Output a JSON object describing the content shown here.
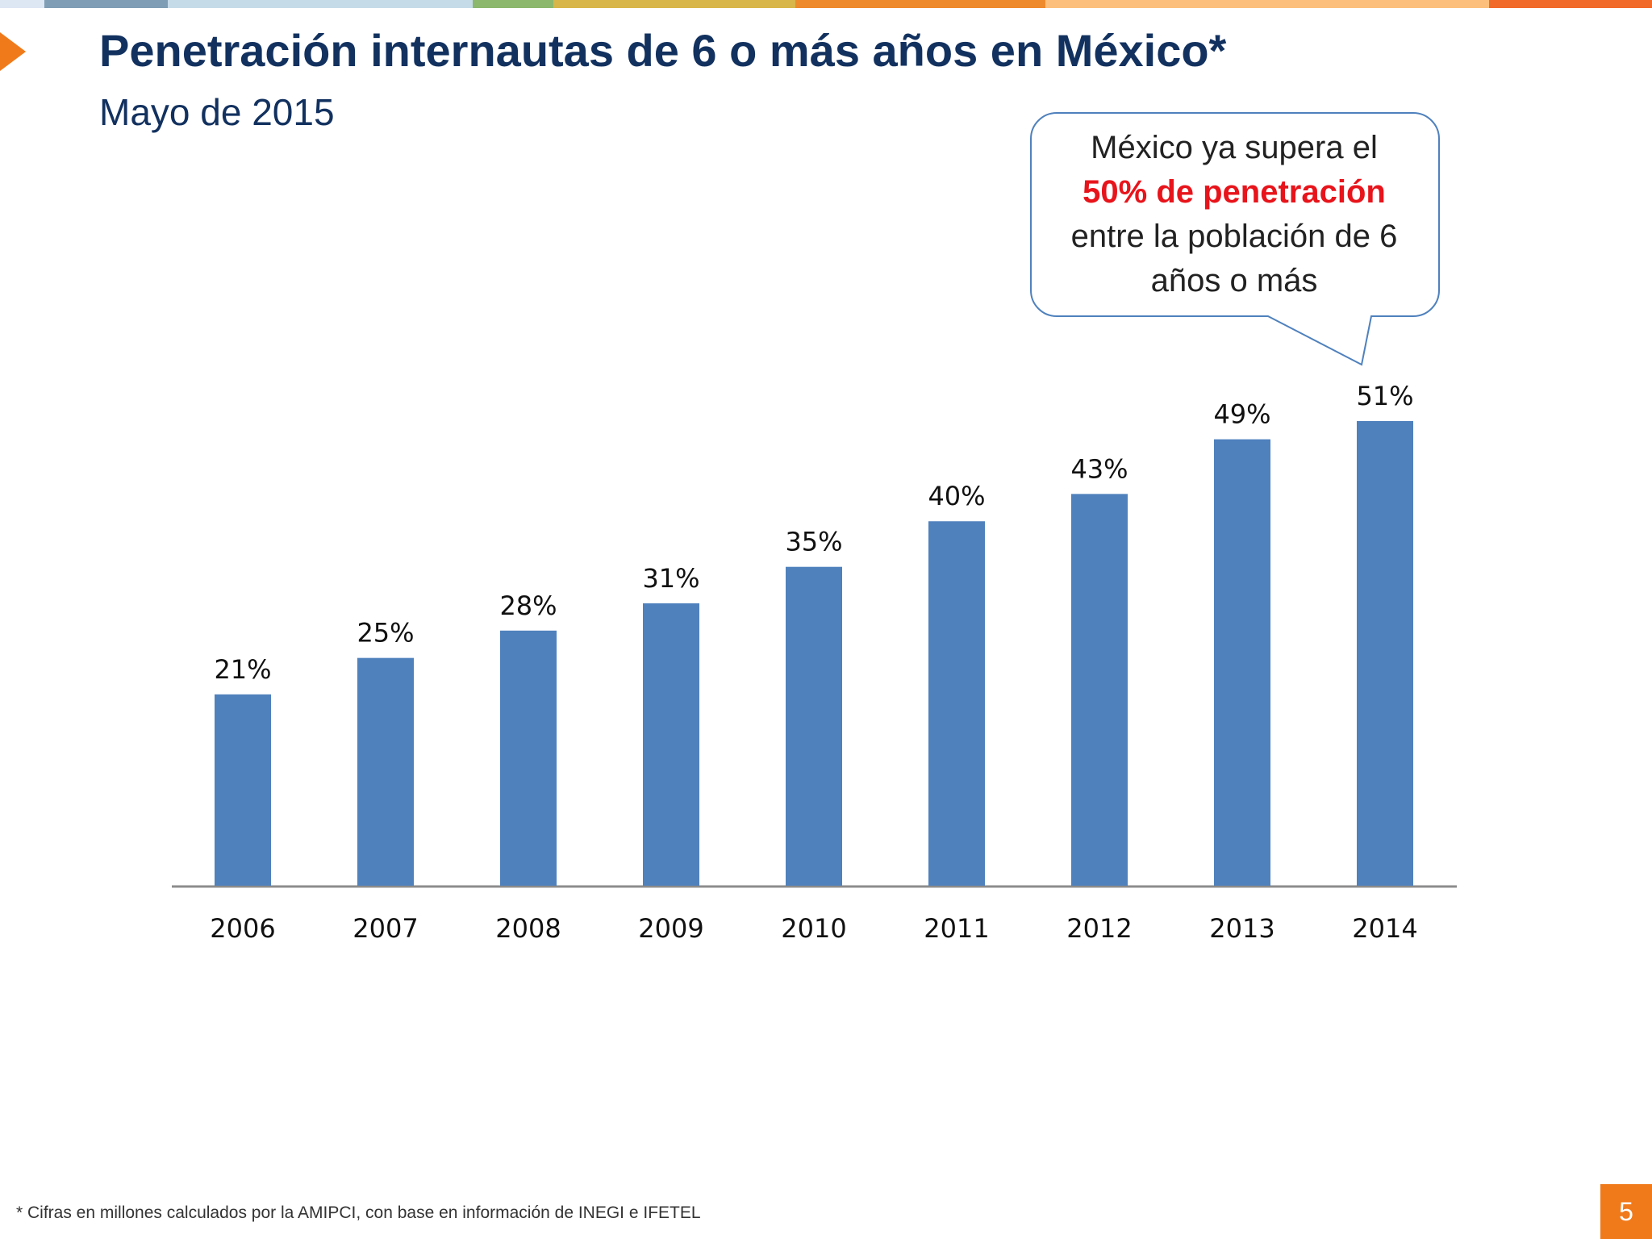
{
  "slide": {
    "title": "Penetración internautas de 6 o más años en México*",
    "subtitle": "Mayo de 2015",
    "footnote": "* Cifras en millones calculados por la AMIPCI, con base en información de INEGI e IFETEL",
    "page_number": "5"
  },
  "callout": {
    "line1": "México ya supera el",
    "highlight": "50% de penetración",
    "line3": "entre la población de 6 años o más"
  },
  "colors": {
    "bar": "#4f81bd",
    "title": "#12315f",
    "highlight": "#e8141b",
    "accent": "#f07a1a",
    "callout_border": "#4f81bd"
  },
  "chart_data": {
    "type": "bar",
    "categories": [
      "2006",
      "2007",
      "2008",
      "2009",
      "2010",
      "2011",
      "2012",
      "2013",
      "2014"
    ],
    "values": [
      21,
      25,
      28,
      31,
      35,
      40,
      43,
      49,
      51
    ],
    "data_labels": [
      "21%",
      "25%",
      "28%",
      "31%",
      "35%",
      "40%",
      "43%",
      "49%",
      "51%"
    ],
    "unit": "%",
    "title": "",
    "xlabel": "",
    "ylabel": "",
    "ylim": [
      0,
      51
    ],
    "grid": false,
    "legend": "none"
  }
}
